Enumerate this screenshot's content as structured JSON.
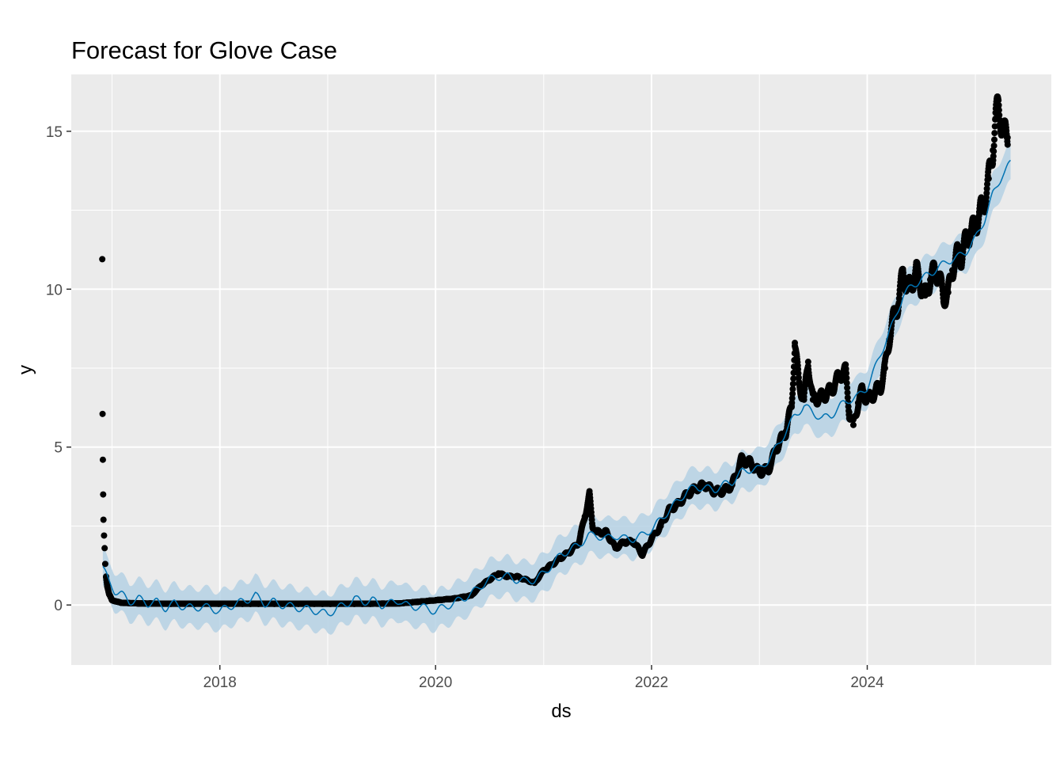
{
  "chart_data": {
    "type": "line",
    "title": "Forecast for Glove Case",
    "xlabel": "ds",
    "ylabel": "y",
    "xlim": [
      "2016-08-16",
      "2025-09-15"
    ],
    "ylim": [
      -1.9,
      16.8
    ],
    "x_ticks": [
      "2018",
      "2020",
      "2022",
      "2024"
    ],
    "y_ticks": [
      "0",
      "5",
      "10",
      "15"
    ],
    "grid": true,
    "colors": {
      "panel": "#ebebeb",
      "grid": "#ffffff",
      "points": "#000000",
      "forecast_line": "#0072b2",
      "interval_band": "#b5d1e4"
    },
    "series": [
      {
        "kind": "points",
        "x": [
          "2016-11-29",
          "2016-11-30",
          "2016-12-01",
          "2016-12-02",
          "2016-12-03",
          "2016-12-05",
          "2016-12-07",
          "2016-12-09",
          "2016-12-12",
          "2016-12-16",
          "2016-12-22",
          "2017-01-01",
          "2017-02-01",
          "2017-04-01",
          "2017-07-01",
          "2017-10-01",
          "2018-01-01",
          "2018-06-01",
          "2019-01-01",
          "2019-06-01",
          "2019-09-01",
          "2019-11-01",
          "2020-01-01",
          "2020-03-01",
          "2020-05-01",
          "2020-06-01",
          "2020-07-01",
          "2020-08-01",
          "2020-09-01",
          "2020-10-01",
          "2020-11-01",
          "2020-12-01",
          "2021-01-01",
          "2021-02-01",
          "2021-03-01",
          "2021-04-01",
          "2021-05-01",
          "2021-05-20",
          "2021-06-05",
          "2021-06-15",
          "2021-07-01",
          "2021-08-01",
          "2021-09-01",
          "2021-10-01",
          "2021-11-01",
          "2021-12-01",
          "2022-01-01",
          "2022-02-01",
          "2022-03-01",
          "2022-04-01",
          "2022-05-01",
          "2022-06-01",
          "2022-07-01",
          "2022-08-01",
          "2022-09-01",
          "2022-10-01",
          "2022-11-01",
          "2022-12-01",
          "2023-01-01",
          "2023-02-01",
          "2023-03-01",
          "2023-04-01",
          "2023-04-20",
          "2023-05-01",
          "2023-05-15",
          "2023-06-01",
          "2023-06-15",
          "2023-07-01",
          "2023-08-01",
          "2023-09-01",
          "2023-10-01",
          "2023-10-20",
          "2023-11-01",
          "2023-11-15",
          "2023-12-01",
          "2023-12-15",
          "2024-01-01",
          "2024-01-15",
          "2024-02-01",
          "2024-02-15",
          "2024-03-01",
          "2024-03-15",
          "2024-04-01",
          "2024-04-15",
          "2024-05-01",
          "2024-05-15",
          "2024-06-01",
          "2024-06-15",
          "2024-07-01",
          "2024-07-15",
          "2024-08-01",
          "2024-08-15",
          "2024-09-01",
          "2024-09-15",
          "2024-10-01",
          "2024-10-15",
          "2024-11-01",
          "2024-11-15",
          "2024-12-01",
          "2024-12-15",
          "2025-01-01",
          "2025-01-15",
          "2025-02-01",
          "2025-02-15",
          "2025-03-01",
          "2025-03-10",
          "2025-03-20",
          "2025-04-01",
          "2025-04-10",
          "2025-04-20"
        ],
        "y": [
          10.95,
          6.05,
          4.6,
          3.5,
          2.7,
          2.2,
          1.8,
          1.3,
          0.9,
          0.6,
          0.35,
          0.15,
          0.07,
          0.05,
          0.04,
          0.04,
          0.04,
          0.04,
          0.04,
          0.04,
          0.05,
          0.1,
          0.15,
          0.2,
          0.3,
          0.6,
          0.8,
          1.0,
          0.9,
          0.9,
          0.8,
          0.7,
          1.1,
          1.3,
          1.5,
          1.7,
          2.0,
          2.8,
          3.5,
          2.5,
          2.3,
          2.3,
          1.8,
          2.0,
          2.0,
          1.6,
          2.1,
          2.5,
          3.0,
          3.2,
          3.5,
          3.7,
          3.8,
          3.6,
          3.6,
          3.8,
          4.6,
          4.5,
          4.2,
          4.3,
          5.0,
          5.5,
          6.3,
          8.3,
          7.0,
          6.5,
          7.7,
          6.5,
          6.6,
          6.8,
          7.3,
          7.4,
          6.1,
          5.7,
          6.4,
          6.8,
          6.5,
          6.6,
          6.8,
          6.9,
          7.5,
          8.4,
          9.2,
          9.5,
          10.6,
          10.0,
          10.2,
          10.6,
          10.1,
          9.8,
          10.3,
          10.6,
          10.4,
          9.7,
          9.9,
          10.6,
          11.1,
          11.0,
          11.6,
          11.8,
          12.0,
          12.4,
          12.8,
          13.5,
          14.4,
          15.4,
          15.8,
          15.2,
          14.9,
          14.8
        ]
      },
      {
        "kind": "forecast",
        "x": [
          "2016-12-01",
          "2016-12-20",
          "2017-01-10",
          "2017-02-01",
          "2017-03-01",
          "2017-04-01",
          "2017-05-01",
          "2017-06-01",
          "2017-07-01",
          "2017-08-01",
          "2017-09-01",
          "2017-10-01",
          "2017-11-01",
          "2017-12-01",
          "2018-01-01",
          "2018-02-01",
          "2018-03-01",
          "2018-04-01",
          "2018-05-01",
          "2018-06-01",
          "2018-07-01",
          "2018-08-01",
          "2018-09-01",
          "2018-10-01",
          "2018-11-01",
          "2018-12-01",
          "2019-01-01",
          "2019-02-01",
          "2019-03-01",
          "2019-04-01",
          "2019-05-01",
          "2019-06-01",
          "2019-07-01",
          "2019-08-01",
          "2019-09-01",
          "2019-10-01",
          "2019-11-01",
          "2019-12-01",
          "2020-01-01",
          "2020-02-01",
          "2020-03-01",
          "2020-04-01",
          "2020-05-01",
          "2020-06-01",
          "2020-07-01",
          "2020-08-01",
          "2020-09-01",
          "2020-10-01",
          "2020-11-01",
          "2020-12-01",
          "2021-01-01",
          "2021-02-01",
          "2021-03-01",
          "2021-04-01",
          "2021-05-01",
          "2021-06-01",
          "2021-07-01",
          "2021-08-01",
          "2021-09-01",
          "2021-10-01",
          "2021-11-01",
          "2021-12-01",
          "2022-01-01",
          "2022-02-01",
          "2022-03-01",
          "2022-04-01",
          "2022-05-01",
          "2022-06-01",
          "2022-07-01",
          "2022-08-01",
          "2022-09-01",
          "2022-10-01",
          "2022-11-01",
          "2022-12-01",
          "2023-01-01",
          "2023-02-01",
          "2023-03-01",
          "2023-04-01",
          "2023-05-01",
          "2023-06-01",
          "2023-07-01",
          "2023-08-01",
          "2023-09-01",
          "2023-10-01",
          "2023-11-01",
          "2023-12-01",
          "2024-01-01",
          "2024-02-01",
          "2024-03-01",
          "2024-04-01",
          "2024-05-01",
          "2024-06-01",
          "2024-07-01",
          "2024-08-01",
          "2024-09-01",
          "2024-10-01",
          "2024-11-01",
          "2024-12-01",
          "2025-01-01",
          "2025-02-01",
          "2025-03-01",
          "2025-04-01",
          "2025-05-01"
        ],
        "y": [
          1.2,
          0.75,
          0.45,
          0.35,
          0.1,
          0.2,
          0.05,
          0.1,
          -0.1,
          0.05,
          -0.05,
          -0.1,
          -0.05,
          -0.1,
          -0.2,
          -0.05,
          0.05,
          0.15,
          0.3,
          0.05,
          0.1,
          0.0,
          -0.05,
          -0.1,
          -0.15,
          -0.2,
          -0.3,
          -0.1,
          0.0,
          0.2,
          0.1,
          0.15,
          0.0,
          0.05,
          0.15,
          -0.05,
          -0.05,
          -0.1,
          -0.2,
          -0.05,
          0.05,
          0.2,
          0.35,
          0.6,
          0.8,
          0.9,
          0.9,
          0.8,
          0.75,
          0.8,
          1.0,
          1.3,
          1.6,
          1.75,
          1.9,
          2.2,
          2.2,
          2.1,
          2.2,
          2.1,
          2.1,
          2.2,
          2.4,
          2.7,
          3.0,
          3.3,
          3.6,
          3.75,
          3.7,
          3.65,
          3.8,
          3.9,
          4.2,
          4.3,
          4.3,
          4.6,
          5.0,
          5.5,
          6.0,
          6.3,
          6.1,
          5.9,
          6.0,
          6.3,
          6.5,
          6.6,
          6.9,
          7.6,
          8.3,
          9.0,
          9.8,
          10.1,
          10.3,
          10.5,
          10.7,
          10.9,
          11.0,
          11.2,
          11.6,
          12.2,
          13.0,
          13.6,
          14.0
        ]
      }
    ],
    "interval_halfwidth": 0.6
  }
}
